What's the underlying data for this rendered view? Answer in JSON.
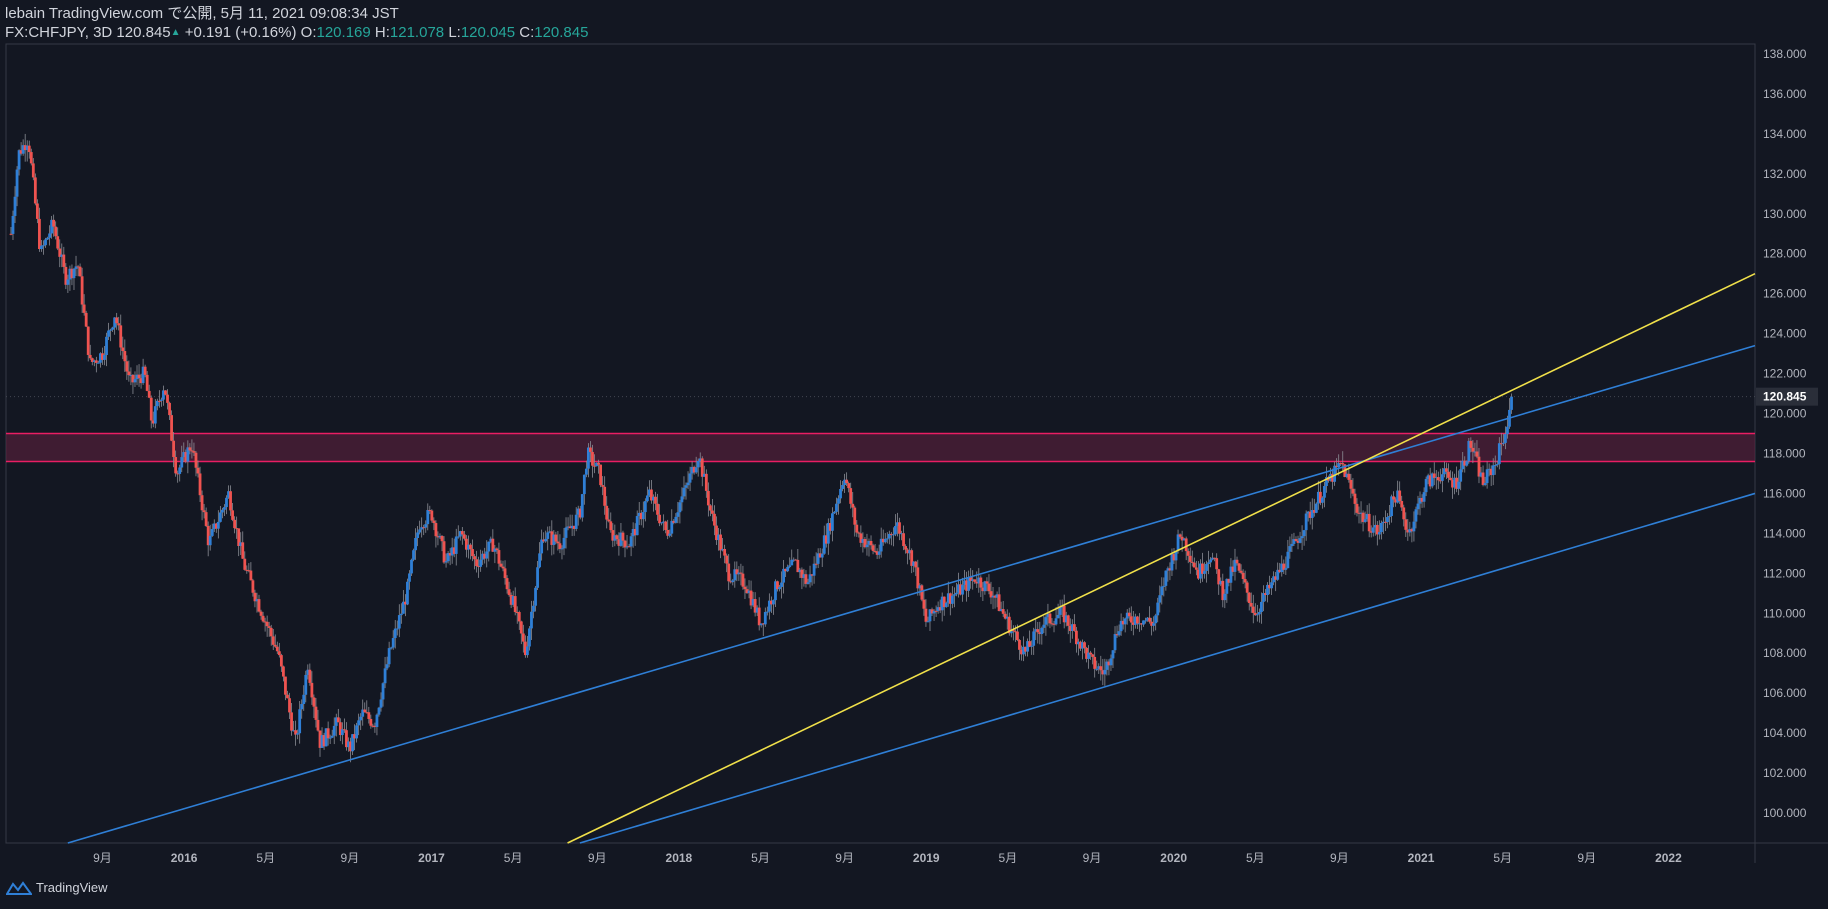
{
  "header": {
    "line1": "lebain TradingView.com で公開, 5月 11, 2021 09:08:34 JST",
    "symbol": "FX:CHFJPY, 3D",
    "last": "120.845",
    "change": "+0.191 (+0.16%)",
    "o_label": "O:",
    "o": "120.169",
    "h_label": "H:",
    "h": "121.078",
    "l_label": "L:",
    "l": "120.045",
    "c_label": "C:",
    "c": "120.845"
  },
  "footer": {
    "brand": "TradingView"
  },
  "chart_data": {
    "type": "candlestick",
    "price_axis": {
      "min": 98.5,
      "max": 138.5,
      "ticks": [
        "100.000",
        "102.000",
        "104.000",
        "106.000",
        "108.000",
        "110.000",
        "112.000",
        "114.000",
        "116.000",
        "118.000",
        "120.000",
        "122.000",
        "124.000",
        "126.000",
        "128.000",
        "130.000",
        "132.000",
        "134.000",
        "136.000",
        "138.000"
      ],
      "last_price_label": "120.845",
      "last_price": 120.845
    },
    "time_axis": {
      "labels": [
        {
          "label": "9月",
          "t": 2015.67
        },
        {
          "label": "2016",
          "t": 2016.0
        },
        {
          "label": "5月",
          "t": 2016.33
        },
        {
          "label": "9月",
          "t": 2016.67
        },
        {
          "label": "2017",
          "t": 2017.0
        },
        {
          "label": "5月",
          "t": 2017.33
        },
        {
          "label": "9月",
          "t": 2017.67
        },
        {
          "label": "2018",
          "t": 2018.0
        },
        {
          "label": "5月",
          "t": 2018.33
        },
        {
          "label": "9月",
          "t": 2018.67
        },
        {
          "label": "2019",
          "t": 2019.0
        },
        {
          "label": "5月",
          "t": 2019.33
        },
        {
          "label": "9月",
          "t": 2019.67
        },
        {
          "label": "2020",
          "t": 2020.0
        },
        {
          "label": "5月",
          "t": 2020.33
        },
        {
          "label": "9月",
          "t": 2020.67
        },
        {
          "label": "2021",
          "t": 2021.0
        },
        {
          "label": "5月",
          "t": 2021.33
        },
        {
          "label": "9月",
          "t": 2021.67
        },
        {
          "label": "2022",
          "t": 2022.0
        }
      ]
    },
    "price_path": [
      [
        2015.3,
        129.0
      ],
      [
        2015.33,
        133.0
      ],
      [
        2015.37,
        133.8
      ],
      [
        2015.42,
        128.0
      ],
      [
        2015.47,
        129.5
      ],
      [
        2015.52,
        126.8
      ],
      [
        2015.57,
        127.5
      ],
      [
        2015.62,
        122.5
      ],
      [
        2015.67,
        123.0
      ],
      [
        2015.72,
        125.0
      ],
      [
        2015.78,
        121.5
      ],
      [
        2015.84,
        122.0
      ],
      [
        2015.87,
        119.5
      ],
      [
        2015.92,
        121.5
      ],
      [
        2015.97,
        117.0
      ],
      [
        2016.03,
        118.5
      ],
      [
        2016.1,
        113.5
      ],
      [
        2016.18,
        116.0
      ],
      [
        2016.24,
        112.5
      ],
      [
        2016.3,
        110.5
      ],
      [
        2016.38,
        108.0
      ],
      [
        2016.45,
        103.5
      ],
      [
        2016.5,
        107.5
      ],
      [
        2016.55,
        103.5
      ],
      [
        2016.62,
        104.5
      ],
      [
        2016.67,
        103.2
      ],
      [
        2016.72,
        105.0
      ],
      [
        2016.77,
        104.5
      ],
      [
        2016.83,
        108.0
      ],
      [
        2016.9,
        111.0
      ],
      [
        2016.95,
        114.5
      ],
      [
        2017.0,
        115.0
      ],
      [
        2017.06,
        112.5
      ],
      [
        2017.12,
        114.0
      ],
      [
        2017.18,
        112.5
      ],
      [
        2017.25,
        113.5
      ],
      [
        2017.33,
        110.5
      ],
      [
        2017.38,
        108.0
      ],
      [
        2017.45,
        114.0
      ],
      [
        2017.52,
        113.5
      ],
      [
        2017.6,
        115.0
      ],
      [
        2017.63,
        118.0
      ],
      [
        2017.68,
        117.0
      ],
      [
        2017.72,
        114.0
      ],
      [
        2017.8,
        113.5
      ],
      [
        2017.88,
        116.0
      ],
      [
        2017.95,
        114.0
      ],
      [
        2018.02,
        116.0
      ],
      [
        2018.08,
        118.0
      ],
      [
        2018.13,
        115.0
      ],
      [
        2018.2,
        112.0
      ],
      [
        2018.27,
        111.5
      ],
      [
        2018.33,
        109.5
      ],
      [
        2018.4,
        111.5
      ],
      [
        2018.47,
        112.5
      ],
      [
        2018.52,
        111.5
      ],
      [
        2018.6,
        114.0
      ],
      [
        2018.67,
        117.0
      ],
      [
        2018.72,
        114.0
      ],
      [
        2018.8,
        113.0
      ],
      [
        2018.88,
        114.5
      ],
      [
        2018.95,
        112.5
      ],
      [
        2019.0,
        109.5
      ],
      [
        2019.05,
        110.5
      ],
      [
        2019.12,
        111.0
      ],
      [
        2019.2,
        111.8
      ],
      [
        2019.27,
        111.0
      ],
      [
        2019.33,
        109.5
      ],
      [
        2019.4,
        108.0
      ],
      [
        2019.47,
        109.5
      ],
      [
        2019.55,
        110.0
      ],
      [
        2019.6,
        109.0
      ],
      [
        2019.67,
        107.5
      ],
      [
        2019.72,
        107.0
      ],
      [
        2019.78,
        109.5
      ],
      [
        2019.85,
        109.8
      ],
      [
        2019.92,
        109.5
      ],
      [
        2019.97,
        112.0
      ],
      [
        2020.03,
        114.0
      ],
      [
        2020.1,
        112.0
      ],
      [
        2020.15,
        113.0
      ],
      [
        2020.2,
        111.0
      ],
      [
        2020.25,
        112.5
      ],
      [
        2020.33,
        110.0
      ],
      [
        2020.4,
        111.5
      ],
      [
        2020.47,
        113.0
      ],
      [
        2020.55,
        115.0
      ],
      [
        2020.62,
        116.5
      ],
      [
        2020.68,
        117.5
      ],
      [
        2020.75,
        115.0
      ],
      [
        2020.83,
        114.0
      ],
      [
        2020.9,
        116.0
      ],
      [
        2020.95,
        114.0
      ],
      [
        2021.02,
        116.5
      ],
      [
        2021.08,
        117.0
      ],
      [
        2021.14,
        116.5
      ],
      [
        2021.2,
        118.5
      ],
      [
        2021.25,
        116.5
      ],
      [
        2021.3,
        117.5
      ],
      [
        2021.35,
        119.5
      ],
      [
        2021.37,
        120.85
      ]
    ],
    "resistance_zone": [
      117.6,
      119.0
    ],
    "trendlines": [
      {
        "color": "#2f7fd6",
        "points": [
          [
            2015.53,
            98.5
          ],
          [
            2022.35,
            123.4
          ]
        ]
      },
      {
        "color": "#2f7fd6",
        "points": [
          [
            2017.6,
            98.5
          ],
          [
            2022.35,
            116.0
          ]
        ]
      },
      {
        "color": "#f0e04a",
        "points": [
          [
            2017.55,
            98.5
          ],
          [
            2022.35,
            127.0
          ]
        ]
      }
    ]
  }
}
